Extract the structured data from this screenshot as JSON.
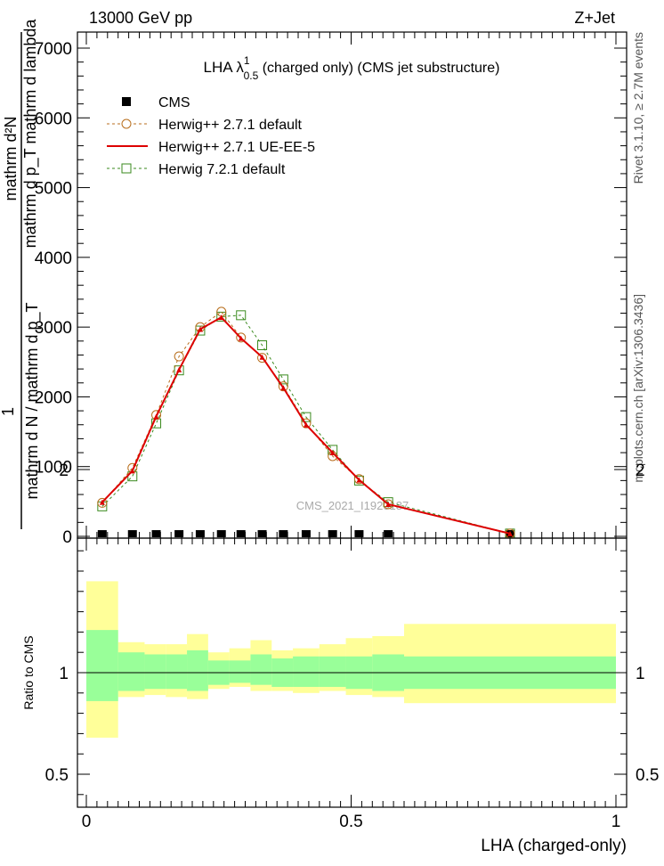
{
  "header": {
    "left": "13000 GeV pp",
    "right": "Z+Jet"
  },
  "side_labels": {
    "rivet": "Rivet 3.1.10, ≥ 2.7M events",
    "mcplots": "mcplots.cern.ch [arXiv:1306.3436]"
  },
  "watermark": "CMS_2021_I1920187",
  "chart_data": [
    {
      "type": "line",
      "title": "LHA λ^1_0.5 (charged only) (CMS jet substructure)",
      "title_parts": {
        "prefix": "LHA λ",
        "sup": "1",
        "sub": "0.5",
        "suffix": " (charged only) (CMS jet substructure)"
      },
      "ylabel": {
        "numerator_top": "mathrm d²N",
        "denominator_top": "mathrm d p_T mathrm d lambda",
        "one": "1",
        "denominator_bottom": "mathrm d N / mathrm d p_T"
      },
      "xlim": [
        0,
        1
      ],
      "ylim": [
        0,
        7000
      ],
      "yticks": [
        0,
        1000,
        2000,
        3000,
        4000,
        5000,
        6000,
        7000
      ],
      "ytick_labels": [
        "0",
        "1000",
        "2000",
        "3000",
        "4000",
        "5000",
        "6000",
        "7000"
      ],
      "legend_position": "top-left",
      "legend": [
        {
          "label": "CMS",
          "marker": "filled-square",
          "color": "#000000"
        },
        {
          "label": "Herwig++ 2.7.1 default",
          "marker": "open-circle",
          "line": "dashed",
          "color": "#b86e1c"
        },
        {
          "label": "Herwig++ 2.7.1 UE-EE-5",
          "marker": "filled-triangle",
          "line": "solid",
          "color": "#dd0000"
        },
        {
          "label": "Herwig 7.2.1 default",
          "marker": "open-square",
          "line": "dashed",
          "color": "#3a8a1e"
        }
      ],
      "x": [
        0.03,
        0.087,
        0.132,
        0.175,
        0.215,
        0.255,
        0.292,
        0.332,
        0.372,
        0.415,
        0.465,
        0.515,
        0.57,
        0.8
      ],
      "series": [
        {
          "name": "CMS",
          "values": [
            25,
            25,
            25,
            25,
            25,
            25,
            25,
            25,
            25,
            25,
            25,
            25,
            25,
            25
          ]
        },
        {
          "name": "Herwig++ 2.7.1 default",
          "values": [
            480,
            980,
            1740,
            2580,
            3000,
            3220,
            2850,
            2560,
            2150,
            1620,
            1150,
            820,
            460,
            40
          ]
        },
        {
          "name": "Herwig++ 2.7.1 UE-EE-5",
          "values": [
            490,
            940,
            1720,
            2390,
            2970,
            3140,
            2840,
            2570,
            2130,
            1600,
            1200,
            810,
            460,
            40
          ]
        },
        {
          "name": "Herwig 7.2.1 default",
          "values": [
            430,
            860,
            1620,
            2380,
            2950,
            3150,
            3170,
            2740,
            2250,
            1710,
            1240,
            800,
            490,
            40
          ]
        }
      ]
    },
    {
      "type": "area",
      "ylabel": "Ratio to CMS",
      "xlabel": "LHA (charged-only)",
      "xlim": [
        0,
        1
      ],
      "ylim": [
        0.3,
        2.3
      ],
      "xticks": [
        0,
        0.5,
        1
      ],
      "xtick_labels": [
        "0",
        "0.5",
        "1"
      ],
      "yticks": [
        0.5,
        1,
        2
      ],
      "ytick_labels": [
        "0.5",
        "1",
        "2"
      ],
      "bins": [
        0,
        0.06,
        0.11,
        0.15,
        0.19,
        0.23,
        0.27,
        0.31,
        0.35,
        0.39,
        0.44,
        0.49,
        0.54,
        0.6,
        1.0
      ],
      "band_inner_low": [
        0.86,
        0.91,
        0.92,
        0.92,
        0.91,
        0.94,
        0.95,
        0.94,
        0.93,
        0.93,
        0.93,
        0.92,
        0.91,
        0.92
      ],
      "band_inner_high": [
        1.21,
        1.1,
        1.09,
        1.09,
        1.11,
        1.06,
        1.06,
        1.09,
        1.07,
        1.08,
        1.08,
        1.08,
        1.09,
        1.08
      ],
      "band_outer_low": [
        0.68,
        0.88,
        0.89,
        0.88,
        0.87,
        0.92,
        0.93,
        0.91,
        0.91,
        0.9,
        0.91,
        0.89,
        0.88,
        0.85
      ],
      "band_outer_high": [
        1.45,
        1.15,
        1.14,
        1.14,
        1.19,
        1.1,
        1.12,
        1.16,
        1.11,
        1.12,
        1.14,
        1.17,
        1.18,
        1.24
      ],
      "colors": {
        "inner": "#99ff99",
        "outer": "#ffff99",
        "reference_line": "#000000"
      }
    }
  ]
}
